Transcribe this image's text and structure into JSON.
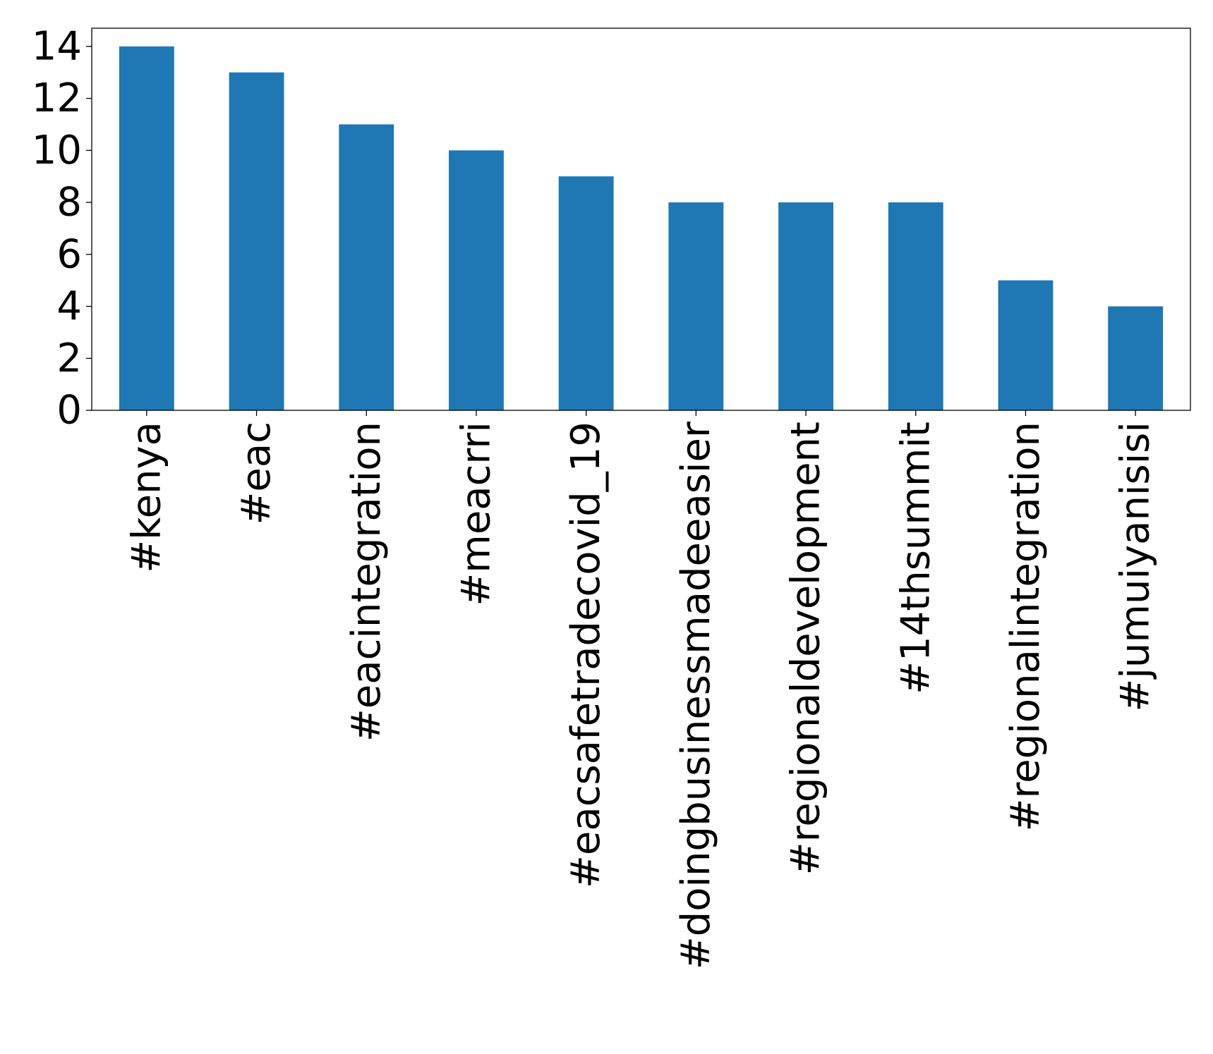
{
  "chart_data": {
    "type": "bar",
    "title": "",
    "xlabel": "",
    "ylabel": "",
    "categories": [
      "#kenya",
      "#eac",
      "#eacintegration",
      "#meacrri",
      "#eacsafetradecovid_19",
      "#doingbusinessmadeeasier",
      "#regionaldevelopment",
      "#14thsummit",
      "#regionalintegration",
      "#jumuiyanisisi"
    ],
    "values": [
      14,
      13,
      11,
      10,
      9,
      8,
      8,
      8,
      5,
      4
    ],
    "ylim": [
      0,
      14.7
    ],
    "yticks": [
      0,
      2,
      4,
      6,
      8,
      10,
      12,
      14
    ],
    "ytick_labels": [
      "0",
      "2",
      "4",
      "6",
      "8",
      "10",
      "12",
      "14"
    ],
    "bar_color": "#1f77b4",
    "grid": false,
    "legend": "none"
  }
}
